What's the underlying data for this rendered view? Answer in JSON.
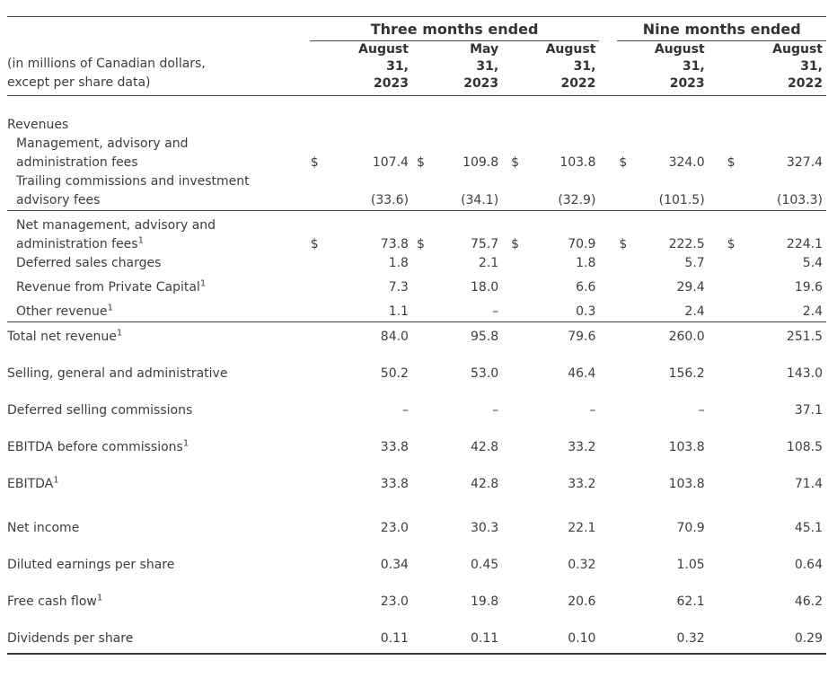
{
  "table": {
    "caption": "(in millions of Canadian dollars,\nexcept per share data)",
    "currency_symbol": "$",
    "header": {
      "groups": [
        "Three months ended",
        "Nine months ended"
      ],
      "columns": [
        "August\n31,\n2023",
        "May\n31,\n2023",
        "August\n31,\n2022",
        "August\n31,\n2023",
        "August\n31,\n2022"
      ]
    },
    "rows": [
      {
        "label": "Revenues",
        "values": [
          "",
          "",
          "",
          "",
          ""
        ],
        "spacing": "first"
      },
      {
        "label": "Management, advisory and\nadministration fees",
        "indent": true,
        "dollar": true,
        "values": [
          "107.4",
          "109.8",
          "103.8",
          "324.0",
          "327.4"
        ]
      },
      {
        "label": "Trailing commissions and investment\nadvisory fees",
        "indent": true,
        "values": [
          "(33.6)",
          "(34.1)",
          "(32.9)",
          "(101.5)",
          "(103.3)"
        ],
        "rule_below": true
      },
      {
        "label": "Net management, advisory and\nadministration fees",
        "footnote": "1",
        "indent": true,
        "dollar": true,
        "values": [
          "73.8",
          "75.7",
          "70.9",
          "222.5",
          "224.1"
        ],
        "spacing": "s"
      },
      {
        "label": "Deferred sales charges",
        "indent": true,
        "values": [
          "1.8",
          "2.1",
          "1.8",
          "5.7",
          "5.4"
        ]
      },
      {
        "label": "Revenue from Private Capital",
        "footnote": "1",
        "indent": true,
        "values": [
          "7.3",
          "18.0",
          "6.6",
          "29.4",
          "19.6"
        ],
        "spacing": "s"
      },
      {
        "label": "Other revenue",
        "footnote": "1",
        "indent": true,
        "values": [
          "1.1",
          "–",
          "0.3",
          "2.4",
          "2.4"
        ],
        "spacing": "s",
        "rule_below": true
      },
      {
        "label": "Total net revenue",
        "footnote": "1",
        "values": [
          "84.0",
          "95.8",
          "79.6",
          "260.0",
          "251.5"
        ],
        "spacing": "s",
        "pad_bottom": true
      },
      {
        "label": "Selling, general and administrative",
        "values": [
          "50.2",
          "53.0",
          "46.4",
          "156.2",
          "143.0"
        ],
        "spacing": "m"
      },
      {
        "label": "Deferred selling commissions",
        "values": [
          "–",
          "–",
          "–",
          "–",
          "37.1"
        ],
        "spacing": "l"
      },
      {
        "label": "EBITDA before commissions",
        "footnote": "1",
        "values": [
          "33.8",
          "42.8",
          "33.2",
          "103.8",
          "108.5"
        ],
        "spacing": "l"
      },
      {
        "label": "EBITDA",
        "footnote": "1",
        "values": [
          "33.8",
          "42.8",
          "33.2",
          "103.8",
          "71.4"
        ],
        "spacing": "l"
      },
      {
        "label": "Net income",
        "values": [
          "23.0",
          "30.3",
          "22.1",
          "70.9",
          "45.1"
        ],
        "spacing": "xl"
      },
      {
        "label": "Diluted earnings per share",
        "values": [
          "0.34",
          "0.45",
          "0.32",
          "1.05",
          "0.64"
        ],
        "spacing": "l"
      },
      {
        "label": "Free cash flow",
        "footnote": "1",
        "values": [
          "23.0",
          "19.8",
          "20.6",
          "62.1",
          "46.2"
        ],
        "spacing": "l"
      },
      {
        "label": "Dividends per share",
        "values": [
          "0.11",
          "0.11",
          "0.10",
          "0.32",
          "0.29"
        ],
        "spacing": "l",
        "bottom_rule": true
      }
    ]
  }
}
